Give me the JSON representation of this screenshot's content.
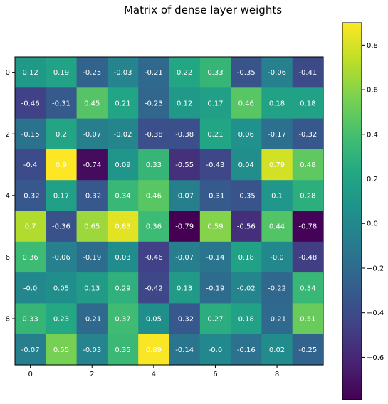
{
  "chart_data": {
    "type": "heatmap",
    "title": "Matrix of dense layer weights",
    "xlabel": "",
    "ylabel": "",
    "x_ticks": [
      "0",
      "2",
      "4",
      "6",
      "8"
    ],
    "y_ticks": [
      "0",
      "2",
      "4",
      "6",
      "8"
    ],
    "colormap": "viridis",
    "value_range": [
      -0.79,
      0.9
    ],
    "colorbar_ticks": [
      "−0.6",
      "−0.4",
      "−0.2",
      "0.0",
      "0.2",
      "0.4",
      "0.6",
      "0.8"
    ],
    "colorbar_tick_values": [
      -0.6,
      -0.4,
      -0.2,
      0.0,
      0.2,
      0.4,
      0.6,
      0.8
    ],
    "matrix": [
      [
        0.12,
        0.19,
        -0.25,
        -0.03,
        -0.21,
        0.22,
        0.33,
        -0.35,
        -0.06,
        -0.41
      ],
      [
        -0.46,
        -0.31,
        0.45,
        0.21,
        -0.23,
        0.12,
        0.17,
        0.46,
        0.18,
        0.18
      ],
      [
        -0.15,
        0.2,
        -0.07,
        -0.02,
        -0.38,
        -0.38,
        0.21,
        0.06,
        -0.17,
        -0.32
      ],
      [
        -0.4,
        0.9,
        -0.74,
        0.09,
        0.33,
        -0.55,
        -0.43,
        0.04,
        0.79,
        0.48
      ],
      [
        -0.32,
        0.17,
        -0.32,
        0.34,
        0.46,
        -0.07,
        -0.31,
        -0.35,
        0.1,
        0.28
      ],
      [
        0.7,
        -0.36,
        0.65,
        0.83,
        0.36,
        -0.79,
        0.59,
        -0.56,
        0.44,
        -0.78
      ],
      [
        0.36,
        -0.06,
        -0.19,
        0.03,
        -0.46,
        -0.07,
        -0.14,
        0.18,
        -0.0,
        -0.48
      ],
      [
        -0.0,
        0.05,
        0.13,
        0.29,
        -0.42,
        0.13,
        -0.19,
        -0.02,
        -0.22,
        0.34
      ],
      [
        0.33,
        0.23,
        -0.21,
        0.37,
        0.05,
        -0.32,
        0.27,
        0.18,
        -0.21,
        0.51
      ],
      [
        -0.07,
        0.55,
        -0.03,
        0.35,
        0.89,
        -0.14,
        -0.0,
        -0.16,
        0.02,
        -0.25
      ]
    ],
    "cell_labels": [
      [
        "0.12",
        "0.19",
        "-0.25",
        "-0.03",
        "-0.21",
        "0.22",
        "0.33",
        "-0.35",
        "-0.06",
        "-0.41"
      ],
      [
        "-0.46",
        "-0.31",
        "0.45",
        "0.21",
        "-0.23",
        "0.12",
        "0.17",
        "0.46",
        "0.18",
        "0.18"
      ],
      [
        "-0.15",
        "0.2",
        "-0.07",
        "-0.02",
        "-0.38",
        "-0.38",
        "0.21",
        "0.06",
        "-0.17",
        "-0.32"
      ],
      [
        "-0.4",
        "0.9",
        "-0.74",
        "0.09",
        "0.33",
        "-0.55",
        "-0.43",
        "0.04",
        "0.79",
        "0.48"
      ],
      [
        "-0.32",
        "0.17",
        "-0.32",
        "0.34",
        "0.46",
        "-0.07",
        "-0.31",
        "-0.35",
        "0.1",
        "0.28"
      ],
      [
        "0.7",
        "-0.36",
        "0.65",
        "0.83",
        "0.36",
        "-0.79",
        "0.59",
        "-0.56",
        "0.44",
        "-0.78"
      ],
      [
        "0.36",
        "-0.06",
        "-0.19",
        "0.03",
        "-0.46",
        "-0.07",
        "-0.14",
        "0.18",
        "-0.0",
        "-0.48"
      ],
      [
        "-0.0",
        "0.05",
        "0.13",
        "0.29",
        "-0.42",
        "0.13",
        "-0.19",
        "-0.02",
        "-0.22",
        "0.34"
      ],
      [
        "0.33",
        "0.23",
        "-0.21",
        "0.37",
        "0.05",
        "-0.32",
        "0.27",
        "0.18",
        "-0.21",
        "0.51"
      ],
      [
        "-0.07",
        "0.55",
        "-0.03",
        "0.35",
        "0.89",
        "-0.14",
        "-0.0",
        "-0.16",
        "0.02",
        "-0.25"
      ]
    ],
    "legend": "colorbar-right",
    "grid": false
  }
}
